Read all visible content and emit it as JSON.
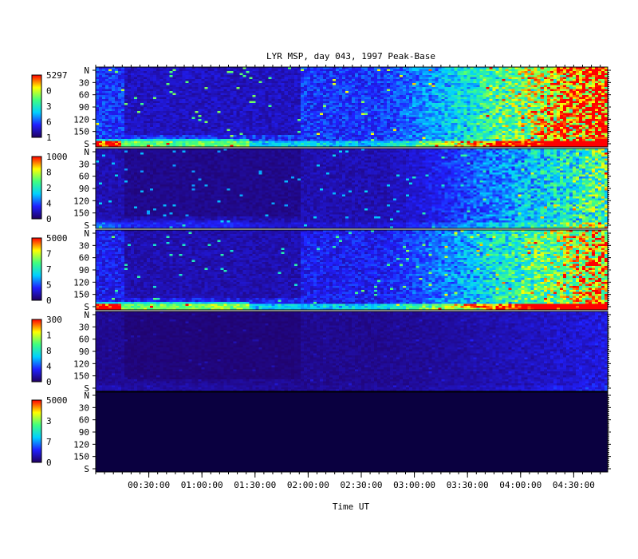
{
  "chart_data": {
    "type": "heatmap",
    "title": "LYR MSP, day 043, 1997 Peak-Base",
    "xlabel": "Time UT",
    "x_tick_labels": [
      "00:30:00",
      "01:00:00",
      "01:30:00",
      "02:00:00",
      "02:30:00",
      "03:00:00",
      "03:30:00",
      "04:00:00",
      "04:30:00"
    ],
    "x_tick_hours": [
      0.5,
      1.0,
      1.5,
      2.0,
      2.5,
      3.0,
      3.5,
      4.0,
      4.5
    ],
    "xlim_hours": [
      0,
      4.82
    ],
    "y_tick_labels": [
      "N",
      "30",
      "60",
      "90",
      "120",
      "150",
      "S"
    ],
    "y_tick_values": [
      0,
      30,
      60,
      90,
      120,
      150,
      180
    ],
    "ylim_deg": [
      0,
      180
    ],
    "colormap": [
      "#200060",
      "#2020ff",
      "#00d0ff",
      "#40ff80",
      "#ffff00",
      "#ff0000"
    ],
    "panels": [
      {
        "name": "panel-1",
        "colorbar_labels": [
          "5297",
          "0",
          "3",
          "6",
          "1"
        ],
        "cmin": 1,
        "cmax": 5297,
        "activity_scale": 1.0,
        "base_level": 0.22,
        "aurora_band": 0.85
      },
      {
        "name": "panel-2",
        "colorbar_labels": [
          "1000",
          "8",
          "2",
          "4",
          "0"
        ],
        "cmin": 0,
        "cmax": 1000,
        "activity_scale": 0.6,
        "base_level": 0.1,
        "aurora_band": 0.2
      },
      {
        "name": "panel-3",
        "colorbar_labels": [
          "5000",
          "7",
          "7",
          "5",
          "0"
        ],
        "cmin": 0,
        "cmax": 5000,
        "activity_scale": 0.8,
        "base_level": 0.18,
        "aurora_band": 1.0
      },
      {
        "name": "panel-4",
        "colorbar_labels": [
          "300",
          "1",
          "8",
          "4",
          "0"
        ],
        "cmin": 0,
        "cmax": 300,
        "activity_scale": 0.12,
        "base_level": 0.06,
        "aurora_band": 0.05
      },
      {
        "name": "panel-5",
        "colorbar_labels": [
          "5000",
          "3",
          "7",
          "0"
        ],
        "cmin": 0,
        "cmax": 5000,
        "activity_scale": 0.0,
        "base_level": 0.0,
        "aurora_band": 0.0
      }
    ]
  },
  "colors": {
    "background": "#ffffff",
    "empty_panel": "#0a0040",
    "axis": "#000000"
  }
}
